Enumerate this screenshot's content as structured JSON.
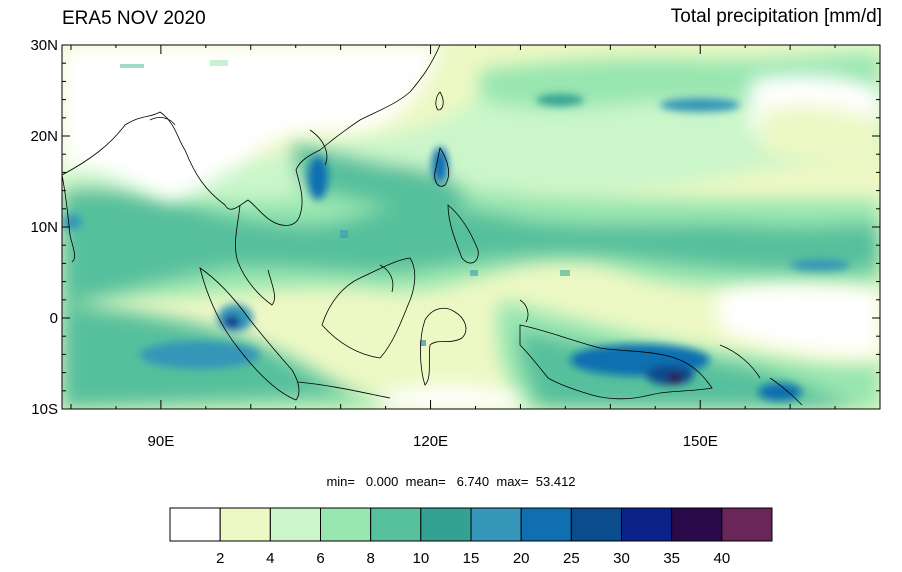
{
  "title_left": "ERA5 NOV 2020",
  "title_right": "Total precipitation [mm/d]",
  "stats": {
    "min_label": "min=",
    "min_value": "0.000",
    "mean_label": "mean=",
    "mean_value": "6.740",
    "max_label": "max=",
    "max_value": "53.412"
  },
  "map": {
    "lon_range": [
      79,
      170
    ],
    "lat_range": [
      -10,
      30
    ],
    "lat_ticks": [
      {
        "value": 30,
        "label": "30N"
      },
      {
        "value": 20,
        "label": "20N"
      },
      {
        "value": 10,
        "label": "10N"
      },
      {
        "value": 0,
        "label": "0"
      },
      {
        "value": -10,
        "label": "10S"
      }
    ],
    "lon_ticks": [
      {
        "value": 90,
        "label": "90E"
      },
      {
        "value": 120,
        "label": "120E"
      },
      {
        "value": 150,
        "label": "150E"
      }
    ]
  },
  "colorbar": {
    "levels": [
      "2",
      "4",
      "6",
      "8",
      "10",
      "15",
      "20",
      "25",
      "30",
      "35",
      "40"
    ],
    "colors": [
      "#ffffff",
      "#edf8c4",
      "#cbf6cb",
      "#98e6b0",
      "#57c09c",
      "#33a293",
      "#3496b8",
      "#0f6fb0",
      "#0a4c8c",
      "#0c2289",
      "#2a0a4a",
      "#6a2659"
    ]
  }
}
